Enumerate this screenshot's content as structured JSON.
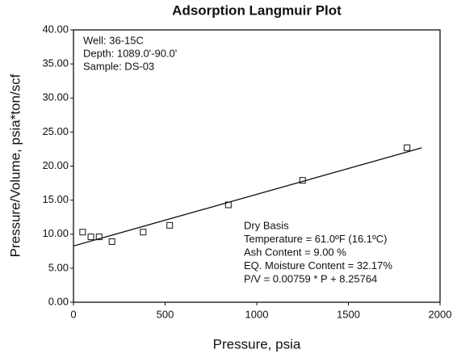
{
  "chart_data": {
    "type": "scatter",
    "title": "Adsorption Langmuir Plot",
    "x_label": "Pressure, psia",
    "y_label": "Pressure/Volume, psia*ton/scf",
    "series": [
      {
        "kind": "points",
        "color": "#111111",
        "x": [
          50,
          95,
          140,
          210,
          380,
          525,
          845,
          1250,
          1820
        ],
        "values": [
          10.3,
          9.6,
          9.6,
          8.9,
          10.3,
          11.3,
          14.3,
          17.9,
          22.7
        ]
      },
      {
        "kind": "line",
        "color": "#111111",
        "x": [
          0,
          1900
        ],
        "values": [
          8.25764,
          22.67864
        ]
      }
    ],
    "xlim": [
      0,
      2000
    ],
    "xticks": [
      0,
      500,
      1000,
      1500,
      2000
    ],
    "ylim": [
      0,
      40
    ],
    "yticks": [
      {
        "value": 0,
        "label": "0.00"
      },
      {
        "value": 5,
        "label": "5.00"
      },
      {
        "value": 10,
        "label": "10.00"
      },
      {
        "value": 15,
        "label": "15.00"
      },
      {
        "value": 20,
        "label": "20.00"
      },
      {
        "value": 25,
        "label": "25.00"
      },
      {
        "value": 30,
        "label": "30.00"
      },
      {
        "value": 35,
        "label": "35.00"
      },
      {
        "value": 40,
        "label": "40.00"
      }
    ],
    "annotations_top_left": [
      "Well: 36-15C",
      "Depth: 1089.0'-90.0'",
      "Sample: DS-03"
    ],
    "annotations_bottom_right": [
      "Dry Basis",
      "Temperature = 61.0ºF (16.1ºC)",
      "Ash Content = 9.00 %",
      "EQ. Moisture Content = 32.17%",
      "P/V = 0.00759 * P + 8.25764"
    ]
  }
}
